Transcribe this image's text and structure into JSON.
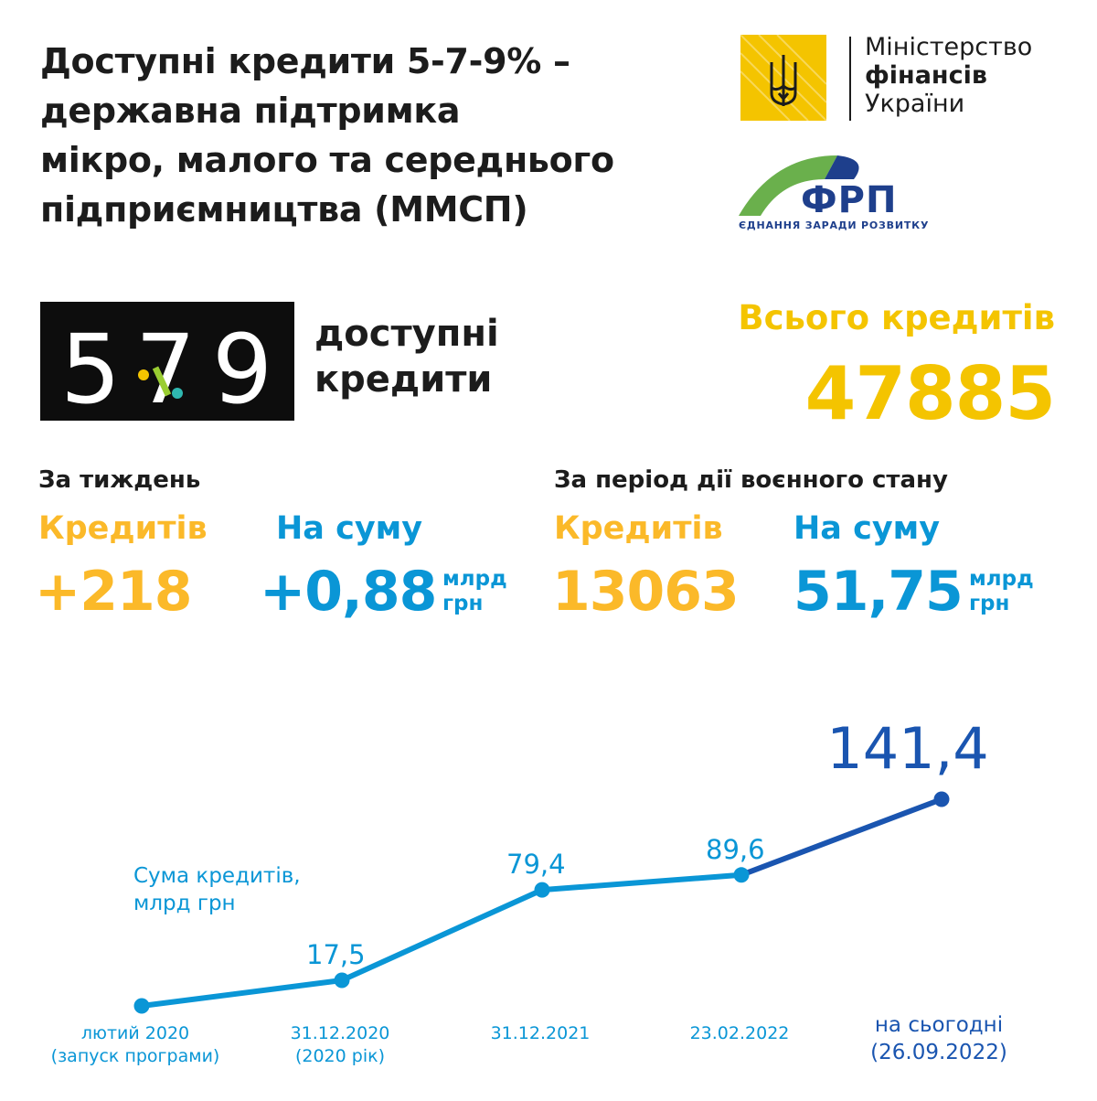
{
  "title": "Доступні кредити 5-7-9% –\nдержавна підтримка\nмікро, малого та середнього\nпідприємництва (ММСП)",
  "ministry_logo": {
    "line1": "Міністерство",
    "line2": "фінансів",
    "line3": "України"
  },
  "frp_logo": {
    "name": "ФРП",
    "tagline": "ЄДНАННЯ ЗАРАДИ РОЗВИТКУ"
  },
  "brand": {
    "numbers": [
      "5",
      "7",
      "9"
    ],
    "text": "доступні\nкредити"
  },
  "total": {
    "label": "Всього кредитів",
    "value": "47885"
  },
  "weekly": {
    "title": "За тиждень",
    "loans_label": "Кредитів",
    "loans_value": "+218",
    "sum_label": "На суму",
    "sum_value": "+0,88",
    "sum_unit": "млрд\nгрн"
  },
  "martial": {
    "title": "За період дії воєнного стану",
    "loans_label": "Кредитів",
    "loans_value": "13063",
    "sum_label": "На суму",
    "sum_value": "51,75",
    "sum_unit": "млрд\nгрн"
  },
  "colors": {
    "yellow": "#fbb929",
    "blue": "#0a96d6",
    "dark_blue": "#1a55b0",
    "logo_yellow": "#f4c400",
    "frp_green": "#6ab04c",
    "frp_navy": "#1e3f8c"
  },
  "chart_data": {
    "type": "line",
    "ylabel": "Сума кредитів,\nмлрд грн",
    "categories": [
      "лютий 2020\n(запуск програми)",
      "31.12.2020\n(2020 рік)",
      "31.12.2021",
      "23.02.2022",
      "на сьогодні\n(26.09.2022)"
    ],
    "values": [
      0,
      17.5,
      79.4,
      89.6,
      141.4
    ],
    "value_labels": [
      "",
      "17,5",
      "79,4",
      "89,6",
      "141,4"
    ]
  }
}
